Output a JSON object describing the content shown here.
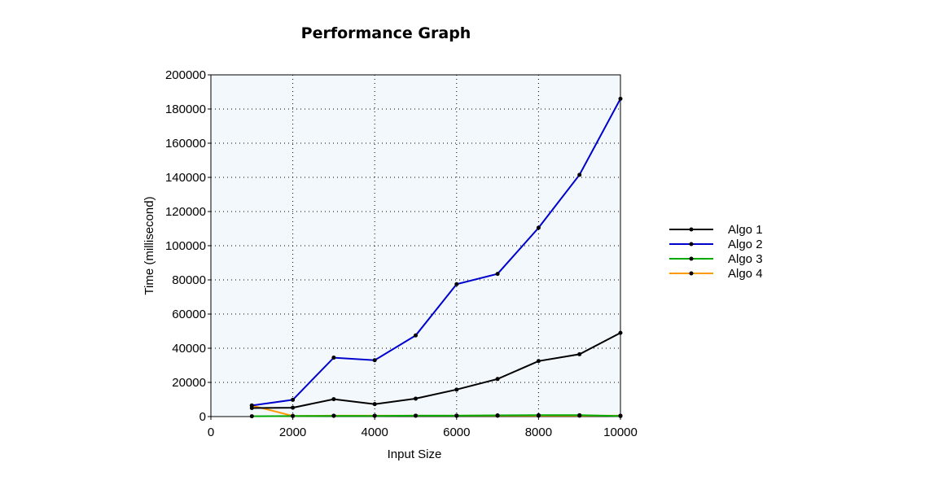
{
  "chart_data": {
    "type": "line",
    "title": "Performance Graph",
    "xlabel": "Input Size",
    "ylabel": "Time (millisecond)",
    "xlim": [
      0,
      10000
    ],
    "ylim": [
      0,
      200000
    ],
    "xticks": [
      0,
      2000,
      4000,
      6000,
      8000,
      10000
    ],
    "yticks": [
      0,
      20000,
      40000,
      60000,
      80000,
      100000,
      120000,
      140000,
      160000,
      180000,
      200000
    ],
    "grid": true,
    "legend_position": "right",
    "x": [
      1000,
      2000,
      3000,
      4000,
      5000,
      6000,
      7000,
      8000,
      9000,
      10000
    ],
    "series": [
      {
        "name": "Algo 1",
        "color": "#000000",
        "values": [
          5000,
          5200,
          10200,
          7300,
          10500,
          15800,
          22000,
          32500,
          36500,
          49000
        ]
      },
      {
        "name": "Algo 2",
        "color": "#0000cc",
        "values": [
          6500,
          9800,
          34500,
          33000,
          47500,
          77500,
          83500,
          110500,
          141500,
          186000
        ]
      },
      {
        "name": "Algo 3",
        "color": "#00aa00",
        "values": [
          200,
          300,
          400,
          400,
          500,
          500,
          700,
          800,
          800,
          300
        ]
      },
      {
        "name": "Algo 4",
        "color": "#ff9900",
        "values": [
          6500,
          400,
          500,
          500,
          500,
          500,
          500,
          500,
          500,
          500
        ]
      }
    ]
  }
}
